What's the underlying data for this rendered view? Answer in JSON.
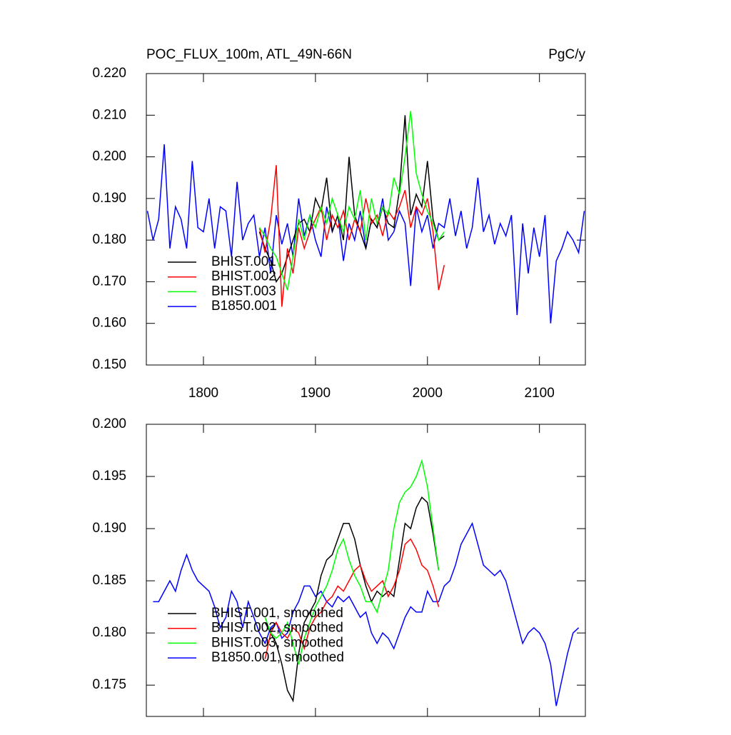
{
  "chart_data": [
    {
      "type": "line",
      "title": "POC_FLUX_100m, ATL_49N-66N",
      "units": "PgC/y",
      "xlim": [
        1749,
        2141
      ],
      "xticks": [
        1800,
        1900,
        2000,
        2100
      ],
      "show_xtick_labels": true,
      "ylim": [
        0.15,
        0.22
      ],
      "yticks": [
        {
          "value": 0.15,
          "label": "0.150"
        },
        {
          "value": 0.16,
          "label": "0.160"
        },
        {
          "value": 0.17,
          "label": "0.170"
        },
        {
          "value": 0.18,
          "label": "0.180"
        },
        {
          "value": 0.19,
          "label": "0.190"
        },
        {
          "value": 0.2,
          "label": "0.200"
        },
        {
          "value": 0.21,
          "label": "0.210"
        },
        {
          "value": 0.22,
          "label": "0.220"
        }
      ],
      "legend": "lower left",
      "series": [
        {
          "name": "B1850.001",
          "color": "#0000ff",
          "x": [
            1750,
            1755,
            1760,
            1765,
            1770,
            1775,
            1780,
            1785,
            1790,
            1795,
            1800,
            1805,
            1810,
            1815,
            1820,
            1825,
            1830,
            1835,
            1840,
            1845,
            1850,
            1855,
            1860,
            1865,
            1870,
            1875,
            1880,
            1885,
            1890,
            1895,
            1900,
            1905,
            1910,
            1915,
            1920,
            1925,
            1930,
            1935,
            1940,
            1945,
            1950,
            1955,
            1960,
            1965,
            1970,
            1975,
            1980,
            1985,
            1990,
            1995,
            2000,
            2005,
            2010,
            2015,
            2020,
            2025,
            2030,
            2035,
            2040,
            2045,
            2050,
            2055,
            2060,
            2065,
            2070,
            2075,
            2080,
            2085,
            2090,
            2095,
            2100,
            2105,
            2110,
            2115,
            2120,
            2125,
            2130,
            2135,
            2140
          ],
          "values": [
            0.187,
            0.18,
            0.185,
            0.203,
            0.178,
            0.188,
            0.185,
            0.178,
            0.199,
            0.183,
            0.182,
            0.19,
            0.178,
            0.188,
            0.187,
            0.176,
            0.194,
            0.18,
            0.184,
            0.186,
            0.176,
            0.183,
            0.172,
            0.186,
            0.179,
            0.184,
            0.176,
            0.19,
            0.181,
            0.186,
            0.18,
            0.176,
            0.188,
            0.182,
            0.186,
            0.175,
            0.184,
            0.18,
            0.187,
            0.178,
            0.185,
            0.183,
            0.19,
            0.18,
            0.182,
            0.187,
            0.184,
            0.169,
            0.188,
            0.182,
            0.186,
            0.178,
            0.184,
            0.183,
            0.19,
            0.181,
            0.187,
            0.178,
            0.183,
            0.195,
            0.182,
            0.186,
            0.179,
            0.184,
            0.181,
            0.186,
            0.162,
            0.184,
            0.172,
            0.183,
            0.176,
            0.186,
            0.16,
            0.175,
            0.178,
            0.182,
            0.18,
            0.177,
            0.187
          ]
        },
        {
          "name": "BHIST.001",
          "color": "#000000",
          "x": [
            1850,
            1855,
            1860,
            1865,
            1870,
            1875,
            1880,
            1885,
            1890,
            1895,
            1900,
            1905,
            1910,
            1915,
            1920,
            1925,
            1930,
            1935,
            1940,
            1945,
            1950,
            1955,
            1960,
            1965,
            1970,
            1975,
            1980,
            1985,
            1990,
            1995,
            2000,
            2005,
            2010,
            2015
          ],
          "values": [
            0.182,
            0.178,
            0.175,
            0.17,
            0.172,
            0.176,
            0.18,
            0.184,
            0.185,
            0.182,
            0.19,
            0.187,
            0.195,
            0.182,
            0.186,
            0.18,
            0.2,
            0.186,
            0.182,
            0.178,
            0.185,
            0.183,
            0.188,
            0.184,
            0.183,
            0.192,
            0.21,
            0.186,
            0.191,
            0.188,
            0.199,
            0.185,
            0.18,
            0.181
          ]
        },
        {
          "name": "BHIST.002",
          "color": "#ff0000",
          "x": [
            1850,
            1855,
            1860,
            1865,
            1870,
            1875,
            1880,
            1885,
            1890,
            1895,
            1900,
            1905,
            1910,
            1915,
            1920,
            1925,
            1930,
            1935,
            1940,
            1945,
            1950,
            1955,
            1960,
            1965,
            1970,
            1975,
            1980,
            1985,
            1990,
            1995,
            2000,
            2005,
            2010,
            2015
          ],
          "values": [
            0.183,
            0.177,
            0.185,
            0.198,
            0.164,
            0.178,
            0.172,
            0.183,
            0.178,
            0.182,
            0.185,
            0.188,
            0.18,
            0.186,
            0.183,
            0.187,
            0.18,
            0.185,
            0.182,
            0.19,
            0.184,
            0.186,
            0.181,
            0.187,
            0.185,
            0.188,
            0.192,
            0.183,
            0.188,
            0.186,
            0.19,
            0.182,
            0.168,
            0.174
          ]
        },
        {
          "name": "BHIST.003",
          "color": "#00ff00",
          "x": [
            1850,
            1855,
            1860,
            1865,
            1870,
            1875,
            1880,
            1885,
            1890,
            1895,
            1900,
            1905,
            1910,
            1915,
            1920,
            1925,
            1930,
            1935,
            1940,
            1945,
            1950,
            1955,
            1960,
            1965,
            1970,
            1975,
            1980,
            1985,
            1990,
            1995,
            2000,
            2005,
            2010,
            2015
          ],
          "values": [
            0.183,
            0.181,
            0.178,
            0.176,
            0.172,
            0.168,
            0.176,
            0.185,
            0.18,
            0.186,
            0.183,
            0.188,
            0.184,
            0.19,
            0.186,
            0.182,
            0.188,
            0.185,
            0.192,
            0.18,
            0.19,
            0.184,
            0.188,
            0.186,
            0.195,
            0.191,
            0.2,
            0.211,
            0.196,
            0.191,
            0.187,
            0.184,
            0.18,
            0.182
          ]
        }
      ]
    },
    {
      "type": "line",
      "xlim": [
        1749,
        2141
      ],
      "xticks": [
        1800,
        1900,
        2000,
        2100
      ],
      "show_xtick_labels": false,
      "ylim": [
        0.172,
        0.2
      ],
      "yticks": [
        0.175,
        {
          "value": 0.18,
          "label": "0.180"
        },
        0.185,
        {
          "value": 0.19,
          "label": "0.190"
        },
        0.195,
        {
          "value": 0.2,
          "label": "0.200"
        }
      ],
      "legend": "lower left",
      "series": [
        {
          "name": "B1850.001, smoothed",
          "color": "#0000ff",
          "x": [
            1755,
            1760,
            1765,
            1770,
            1775,
            1780,
            1785,
            1790,
            1795,
            1800,
            1805,
            1810,
            1815,
            1820,
            1825,
            1830,
            1835,
            1840,
            1845,
            1850,
            1855,
            1860,
            1865,
            1870,
            1875,
            1880,
            1885,
            1890,
            1895,
            1900,
            1905,
            1910,
            1915,
            1920,
            1925,
            1930,
            1935,
            1940,
            1945,
            1950,
            1955,
            1960,
            1965,
            1970,
            1975,
            1980,
            1985,
            1990,
            1995,
            2000,
            2005,
            2010,
            2015,
            2020,
            2025,
            2030,
            2035,
            2040,
            2045,
            2050,
            2055,
            2060,
            2065,
            2070,
            2075,
            2080,
            2085,
            2090,
            2095,
            2100,
            2105,
            2110,
            2115,
            2120,
            2125,
            2130,
            2135
          ],
          "values": [
            0.183,
            0.183,
            0.184,
            0.185,
            0.184,
            0.186,
            0.1875,
            0.186,
            0.185,
            0.1845,
            0.184,
            0.1825,
            0.1805,
            0.1815,
            0.184,
            0.183,
            0.1805,
            0.183,
            0.1815,
            0.18,
            0.179,
            0.1805,
            0.181,
            0.1795,
            0.18,
            0.182,
            0.183,
            0.1845,
            0.1845,
            0.1835,
            0.184,
            0.183,
            0.1825,
            0.1835,
            0.183,
            0.1835,
            0.1825,
            0.1815,
            0.182,
            0.18,
            0.179,
            0.18,
            0.1795,
            0.1785,
            0.18,
            0.1815,
            0.1825,
            0.182,
            0.182,
            0.184,
            0.183,
            0.183,
            0.1845,
            0.185,
            0.1865,
            0.1885,
            0.1895,
            0.1905,
            0.1885,
            0.1865,
            0.186,
            0.1855,
            0.186,
            0.185,
            0.183,
            0.181,
            0.179,
            0.18,
            0.1805,
            0.18,
            0.179,
            0.177,
            0.173,
            0.1755,
            0.178,
            0.18,
            0.1805
          ]
        },
        {
          "name": "BHIST.001, smoothed",
          "color": "#000000",
          "x": [
            1855,
            1860,
            1865,
            1870,
            1875,
            1880,
            1885,
            1890,
            1895,
            1900,
            1905,
            1910,
            1915,
            1920,
            1925,
            1930,
            1935,
            1940,
            1945,
            1950,
            1955,
            1960,
            1965,
            1970,
            1975,
            1980,
            1985,
            1990,
            1995,
            2000,
            2005,
            2010
          ],
          "values": [
            0.181,
            0.18,
            0.179,
            0.177,
            0.1745,
            0.1735,
            0.178,
            0.181,
            0.182,
            0.183,
            0.1855,
            0.187,
            0.1875,
            0.189,
            0.1905,
            0.1905,
            0.189,
            0.1865,
            0.1845,
            0.183,
            0.184,
            0.1835,
            0.184,
            0.1835,
            0.187,
            0.1905,
            0.19,
            0.192,
            0.193,
            0.1925,
            0.1895,
            0.186
          ]
        },
        {
          "name": "BHIST.002, smoothed",
          "color": "#ff0000",
          "x": [
            1855,
            1860,
            1865,
            1870,
            1875,
            1880,
            1885,
            1890,
            1895,
            1900,
            1905,
            1910,
            1915,
            1920,
            1925,
            1930,
            1935,
            1940,
            1945,
            1950,
            1955,
            1960,
            1965,
            1970,
            1975,
            1980,
            1985,
            1990,
            1995,
            2000,
            2005,
            2010
          ],
          "values": [
            0.1775,
            0.18,
            0.181,
            0.18,
            0.1795,
            0.1805,
            0.18,
            0.1785,
            0.1805,
            0.1815,
            0.182,
            0.183,
            0.1835,
            0.1845,
            0.184,
            0.185,
            0.186,
            0.1865,
            0.185,
            0.184,
            0.1845,
            0.185,
            0.1835,
            0.1845,
            0.186,
            0.1885,
            0.189,
            0.188,
            0.1865,
            0.186,
            0.1845,
            0.1825
          ]
        },
        {
          "name": "BHIST.003, smoothed",
          "color": "#00ff00",
          "x": [
            1855,
            1860,
            1865,
            1870,
            1875,
            1880,
            1885,
            1890,
            1895,
            1900,
            1905,
            1910,
            1915,
            1920,
            1925,
            1930,
            1935,
            1940,
            1945,
            1950,
            1955,
            1960,
            1965,
            1970,
            1975,
            1980,
            1985,
            1990,
            1995,
            2000,
            2005,
            2010
          ],
          "values": [
            0.1815,
            0.18,
            0.1795,
            0.18,
            0.181,
            0.179,
            0.177,
            0.1795,
            0.181,
            0.1825,
            0.1835,
            0.1845,
            0.186,
            0.188,
            0.189,
            0.187,
            0.1855,
            0.1845,
            0.183,
            0.183,
            0.182,
            0.184,
            0.186,
            0.19,
            0.1925,
            0.1935,
            0.194,
            0.195,
            0.1965,
            0.194,
            0.19,
            0.186
          ]
        }
      ]
    }
  ]
}
